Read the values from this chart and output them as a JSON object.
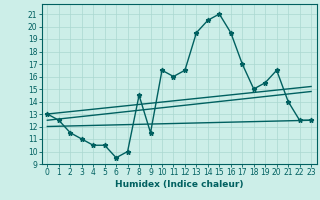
{
  "xlabel": "Humidex (Indice chaleur)",
  "bg_color": "#cceee8",
  "grid_color": "#aad8d0",
  "line_color": "#006060",
  "xlim": [
    -0.5,
    23.5
  ],
  "ylim": [
    9,
    21.8
  ],
  "yticks": [
    9,
    10,
    11,
    12,
    13,
    14,
    15,
    16,
    17,
    18,
    19,
    20,
    21
  ],
  "xticks": [
    0,
    1,
    2,
    3,
    4,
    5,
    6,
    7,
    8,
    9,
    10,
    11,
    12,
    13,
    14,
    15,
    16,
    17,
    18,
    19,
    20,
    21,
    22,
    23
  ],
  "series1_x": [
    0,
    1,
    2,
    3,
    4,
    5,
    6,
    7,
    8,
    9,
    10,
    11,
    12,
    13,
    14,
    15,
    16,
    17,
    18,
    19,
    20,
    21,
    22,
    23
  ],
  "series1_y": [
    13.0,
    12.5,
    11.5,
    11.0,
    10.5,
    10.5,
    9.5,
    10.0,
    14.5,
    11.5,
    16.5,
    16.0,
    16.5,
    19.5,
    20.5,
    21.0,
    19.5,
    17.0,
    15.0,
    15.5,
    16.5,
    14.0,
    12.5,
    12.5
  ],
  "trend1_x": [
    0,
    23
  ],
  "trend1_y": [
    13.0,
    15.2
  ],
  "trend2_x": [
    0,
    23
  ],
  "trend2_y": [
    12.5,
    14.8
  ],
  "trend3_x": [
    0,
    23
  ],
  "trend3_y": [
    12.0,
    12.5
  ],
  "marker": "*",
  "markersize": 3.5,
  "linewidth": 1.0,
  "tick_fontsize": 5.5,
  "xlabel_fontsize": 6.5
}
